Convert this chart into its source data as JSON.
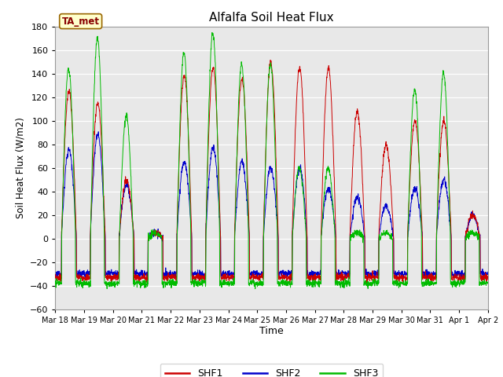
{
  "title": "Alfalfa Soil Heat Flux",
  "ylabel": "Soil Heat Flux (W/m2)",
  "xlabel": "Time",
  "annotation": "TA_met",
  "ylim": [
    -60,
    180
  ],
  "yticks": [
    -60,
    -40,
    -20,
    0,
    20,
    40,
    60,
    80,
    100,
    120,
    140,
    160,
    180
  ],
  "colors": {
    "SHF1": "#cc0000",
    "SHF2": "#0000cc",
    "SHF3": "#00bb00"
  },
  "bg_color": "#e8e8e8",
  "annotation_bg": "#ffffcc",
  "annotation_text_color": "#880000",
  "x_tick_labels": [
    "Mar 18",
    "Mar 19",
    "Mar 20",
    "Mar 21",
    "Mar 22",
    "Mar 23",
    "Mar 24",
    "Mar 25",
    "Mar 26",
    "Mar 27",
    "Mar 28",
    "Mar 29",
    "Mar 30",
    "Mar 31",
    "Apr 1",
    "Apr 2"
  ],
  "num_days": 15,
  "points_per_day": 144,
  "shf1_peaks": [
    125,
    115,
    50,
    5,
    138,
    145,
    135,
    150,
    145,
    145,
    108,
    80,
    100,
    100,
    20,
    0
  ],
  "shf2_peaks": [
    75,
    88,
    45,
    5,
    65,
    78,
    65,
    60,
    60,
    42,
    35,
    28,
    42,
    50,
    20,
    0
  ],
  "shf3_peaks": [
    144,
    170,
    104,
    5,
    158,
    175,
    148,
    148,
    60,
    60,
    5,
    5,
    126,
    140,
    5,
    0
  ],
  "night_shf1": -33,
  "night_shf2": -30,
  "night_shf3": -38,
  "linewidth": 0.7
}
